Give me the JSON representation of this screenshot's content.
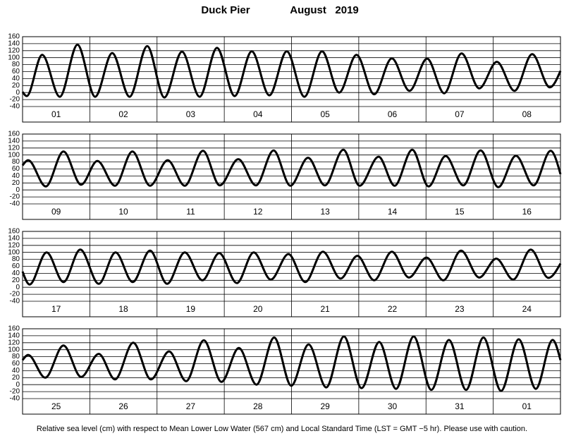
{
  "station": "Duck Pier",
  "period": "August   2019",
  "note": "Relative sea level (cm) with respect to Mean Lower Low Water (567 cm) and Local Standard Time (LST = GMT −5 hr). Please use with caution.",
  "chart_data": [
    {
      "type": "line",
      "color": "#000000",
      "xlim": [
        0,
        192
      ],
      "ylim": [
        -40,
        160
      ],
      "yticks": [
        -40,
        -20,
        0,
        20,
        40,
        60,
        80,
        100,
        120,
        140,
        160
      ],
      "grid": true,
      "categories": [
        "01",
        "02",
        "03",
        "04",
        "05",
        "06",
        "07",
        "08"
      ],
      "x": [
        0,
        1.5,
        7.0,
        13.3,
        19.6,
        25.9,
        32.0,
        38.2,
        44.5,
        50.6,
        56.9,
        63.2,
        69.4,
        75.7,
        81.8,
        88.1,
        94.3,
        100.6,
        106.9,
        113.0,
        119.2,
        125.5,
        131.8,
        138.1,
        144.4,
        150.5,
        156.7,
        163.0,
        169.3,
        175.6,
        181.9,
        188.2,
        192
      ],
      "values": [
        2,
        -10,
        108,
        -12,
        137,
        -12,
        113,
        -12,
        133,
        -14,
        117,
        -12,
        128,
        -10,
        118,
        -8,
        118,
        -12,
        118,
        0,
        108,
        -5,
        98,
        5,
        97,
        -2,
        112,
        12,
        88,
        5,
        110,
        15,
        62
      ]
    },
    {
      "type": "line",
      "color": "#000000",
      "xlim": [
        0,
        192
      ],
      "ylim": [
        -40,
        160
      ],
      "yticks": [
        -40,
        -20,
        0,
        20,
        40,
        60,
        80,
        100,
        120,
        140,
        160
      ],
      "grid": true,
      "categories": [
        "09",
        "10",
        "11",
        "12",
        "13",
        "14",
        "15",
        "16"
      ],
      "x": [
        0,
        2.0,
        8.3,
        14.6,
        20.9,
        26.7,
        33.0,
        39.2,
        45.5,
        51.8,
        57.9,
        64.4,
        70.4,
        77.0,
        83.3,
        89.6,
        95.6,
        101.9,
        107.9,
        114.5,
        120.3,
        127.1,
        132.8,
        139.1,
        144.9,
        151.0,
        157.3,
        163.5,
        169.8,
        176.1,
        182.4,
        188.5,
        192
      ],
      "values": [
        70,
        85,
        10,
        110,
        15,
        83,
        12,
        110,
        12,
        85,
        12,
        112,
        13,
        88,
        13,
        113,
        12,
        92,
        13,
        115,
        12,
        95,
        12,
        115,
        10,
        97,
        13,
        113,
        8,
        98,
        13,
        112,
        45
      ]
    },
    {
      "type": "line",
      "color": "#000000",
      "xlim": [
        0,
        192
      ],
      "ylim": [
        -40,
        160
      ],
      "yticks": [
        -40,
        -20,
        0,
        20,
        40,
        60,
        80,
        100,
        120,
        140,
        160
      ],
      "grid": true,
      "categories": [
        "17",
        "18",
        "19",
        "20",
        "21",
        "22",
        "23",
        "24"
      ],
      "x": [
        0,
        2.5,
        8.6,
        14.6,
        20.6,
        27.2,
        33.2,
        39.3,
        45.5,
        51.6,
        57.9,
        64.2,
        70.2,
        76.5,
        82.5,
        88.6,
        94.9,
        100.9,
        107.2,
        113.5,
        119.5,
        125.5,
        131.8,
        137.9,
        144.2,
        150.2,
        156.5,
        163.0,
        169.1,
        175.1,
        181.4,
        187.7,
        192
      ],
      "values": [
        45,
        8,
        100,
        15,
        108,
        10,
        100,
        15,
        105,
        10,
        100,
        20,
        98,
        12,
        100,
        22,
        95,
        15,
        102,
        25,
        90,
        20,
        102,
        28,
        85,
        20,
        105,
        28,
        82,
        22,
        108,
        27,
        68
      ]
    },
    {
      "type": "line",
      "color": "#000000",
      "xlim": [
        0,
        192
      ],
      "ylim": [
        -40,
        160
      ],
      "yticks": [
        -40,
        -20,
        0,
        20,
        40,
        60,
        80,
        100,
        120,
        140,
        160
      ],
      "grid": true,
      "categories": [
        "25",
        "26",
        "27",
        "28",
        "29",
        "30",
        "31",
        "01"
      ],
      "x": [
        0,
        2.0,
        8.1,
        14.6,
        20.9,
        27.2,
        33.0,
        39.5,
        45.8,
        52.3,
        58.4,
        64.7,
        71.0,
        77.2,
        83.5,
        89.8,
        95.9,
        102.1,
        108.4,
        114.7,
        121.0,
        127.3,
        133.3,
        139.6,
        145.9,
        152.2,
        158.3,
        164.5,
        170.8,
        177.1,
        183.2,
        189.2,
        192
      ],
      "values": [
        70,
        85,
        20,
        112,
        22,
        88,
        15,
        120,
        15,
        95,
        10,
        127,
        8,
        105,
        0,
        135,
        -3,
        115,
        -8,
        138,
        -10,
        122,
        -12,
        138,
        -15,
        128,
        -15,
        135,
        -18,
        130,
        -12,
        128,
        70
      ]
    }
  ]
}
